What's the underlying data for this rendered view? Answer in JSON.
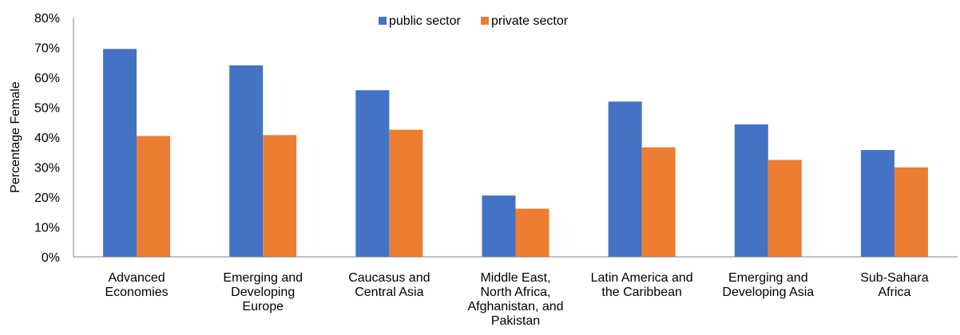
{
  "chart_data": {
    "type": "bar",
    "categories": [
      [
        "Advanced",
        "Economies"
      ],
      [
        "Emerging and",
        "Developing",
        "Europe"
      ],
      [
        "Caucasus and",
        "Central Asia"
      ],
      [
        "Middle East,",
        "North Africa,",
        "Afghanistan, and",
        "Pakistan"
      ],
      [
        "Latin America and",
        "the Caribbean"
      ],
      [
        "Emerging and",
        "Developing Asia"
      ],
      [
        "Sub-Sahara",
        "Africa"
      ]
    ],
    "series": [
      {
        "name": "public sector",
        "color": "#4472C4",
        "values": [
          69.5,
          64.0,
          55.7,
          20.5,
          51.9,
          44.3,
          35.7
        ]
      },
      {
        "name": "private sector",
        "color": "#ED7D31",
        "values": [
          40.4,
          40.7,
          42.5,
          16.1,
          36.6,
          32.4,
          29.9
        ]
      }
    ],
    "title": "",
    "xlabel": "",
    "ylabel": "Percentage Female",
    "ylim": [
      0,
      80
    ],
    "yticks": [
      0,
      10,
      20,
      30,
      40,
      50,
      60,
      70,
      80
    ],
    "ytick_labels": [
      "0%",
      "10%",
      "20%",
      "30%",
      "40%",
      "50%",
      "60%",
      "70%",
      "80%"
    ],
    "grid": false,
    "legend": "top-center"
  }
}
